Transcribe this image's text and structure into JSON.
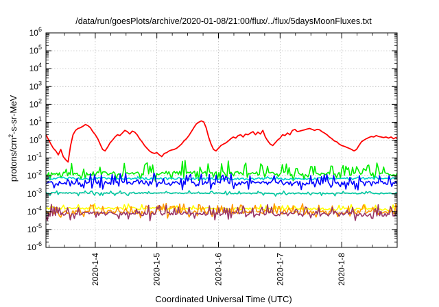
{
  "chart_data": {
    "type": "line",
    "title": "/data/run/goesPlots/archive/2020-01-08/21:00/flux/../flux/5daysMoonFluxes.txt",
    "xlabel": "Coordinated Universal Time (UTC)",
    "ylabel": {
      "base": "protons/cm",
      "sup": "2",
      "rest": "-s-sr-MeV"
    },
    "y_scale": "log",
    "ylim_exponents": [
      -6,
      6
    ],
    "y_tick_base": "10",
    "y_tick_exponents": [
      "-6",
      "-5",
      "-4",
      "-3",
      "-2",
      "-1",
      "0",
      "1",
      "2",
      "3",
      "4",
      "5",
      "6"
    ],
    "x_range_days": [
      3.2,
      8.9
    ],
    "x_ticks": [
      {
        "label": "2020-1-4",
        "day": 4
      },
      {
        "label": "2020-1-5",
        "day": 5
      },
      {
        "label": "2020-1-6",
        "day": 6
      },
      {
        "label": "2020-1-7",
        "day": 7
      },
      {
        "label": "2020-1-8",
        "day": 8
      }
    ],
    "grid": true,
    "legend": "none",
    "series": [
      {
        "color": "#ff0000",
        "day": [
          3.2,
          3.24,
          3.28,
          3.32,
          3.36,
          3.4,
          3.44,
          3.48,
          3.52,
          3.56,
          3.6,
          3.64,
          3.68,
          3.72,
          3.76,
          3.8,
          3.84,
          3.88,
          3.92,
          3.96,
          4.0,
          4.04,
          4.08,
          4.12,
          4.16,
          4.2,
          4.24,
          4.28,
          4.32,
          4.36,
          4.4,
          4.44,
          4.48,
          4.52,
          4.56,
          4.6,
          4.64,
          4.68,
          4.72,
          4.76,
          4.8,
          4.84,
          4.88,
          4.92,
          4.96,
          5.0,
          5.04,
          5.08,
          5.12,
          5.16,
          5.2,
          5.24,
          5.28,
          5.32,
          5.36,
          5.4,
          5.44,
          5.48,
          5.52,
          5.56,
          5.6,
          5.64,
          5.68,
          5.72,
          5.76,
          5.8,
          5.84,
          5.88,
          5.92,
          5.96,
          6.0,
          6.04,
          6.08,
          6.12,
          6.16,
          6.2,
          6.24,
          6.28,
          6.32,
          6.36,
          6.4,
          6.44,
          6.48,
          6.52,
          6.56,
          6.6,
          6.64,
          6.68,
          6.72,
          6.76,
          6.8,
          6.84,
          6.88,
          6.92,
          6.96,
          7.0,
          7.04,
          7.08,
          7.12,
          7.16,
          7.2,
          7.24,
          7.28,
          7.32,
          7.36,
          7.4,
          7.44,
          7.48,
          7.52,
          7.56,
          7.6,
          7.64,
          7.68,
          7.72,
          7.76,
          7.8,
          7.84,
          7.88,
          7.92,
          7.96,
          8.0,
          8.04,
          8.08,
          8.12,
          8.16,
          8.2,
          8.24,
          8.28,
          8.32,
          8.36,
          8.4,
          8.44,
          8.48,
          8.52,
          8.56,
          8.6,
          8.64,
          8.68,
          8.72,
          8.76,
          8.8,
          8.84,
          8.88,
          8.9
        ],
        "y": [
          2.0,
          1.1,
          0.6,
          0.35,
          0.25,
          0.15,
          0.3,
          0.12,
          0.08,
          0.06,
          0.5,
          2.0,
          3.5,
          4.5,
          5.0,
          6.0,
          7.5,
          6.5,
          5.0,
          3.0,
          2.0,
          1.2,
          0.6,
          0.3,
          0.25,
          0.4,
          0.7,
          1.0,
          1.5,
          2.0,
          1.8,
          2.5,
          3.5,
          3.0,
          2.2,
          3.2,
          2.8,
          2.0,
          1.2,
          0.8,
          0.5,
          0.35,
          0.25,
          0.2,
          0.18,
          0.2,
          0.15,
          0.12,
          0.18,
          0.2,
          0.25,
          0.28,
          0.3,
          0.35,
          0.45,
          0.6,
          0.9,
          1.2,
          1.8,
          3.0,
          5.0,
          8.0,
          10.0,
          12.0,
          10.5,
          5.0,
          1.5,
          0.6,
          0.3,
          0.25,
          0.35,
          0.5,
          0.6,
          0.7,
          0.9,
          1.2,
          1.5,
          1.3,
          1.8,
          2.0,
          1.5,
          2.2,
          2.0,
          2.5,
          3.0,
          2.0,
          2.8,
          2.2,
          3.5,
          1.5,
          0.9,
          0.6,
          0.5,
          0.7,
          1.0,
          1.3,
          2.0,
          1.8,
          2.5,
          2.0,
          3.5,
          4.0,
          3.0,
          3.2,
          3.5,
          3.8,
          4.2,
          4.5,
          4.0,
          3.5,
          4.0,
          3.8,
          3.0,
          2.5,
          2.0,
          1.5,
          1.2,
          0.9,
          0.8,
          0.6,
          0.5,
          0.45,
          0.4,
          0.35,
          0.3,
          0.25,
          0.3,
          0.5,
          0.8,
          1.0,
          1.2,
          1.4,
          1.6,
          1.5,
          1.8,
          1.6,
          1.5,
          1.4,
          1.5,
          1.3,
          1.5,
          1.2,
          1.4,
          1.2
        ]
      },
      {
        "color": "#00ee00",
        "style": "spiky",
        "base": [
          0.013,
          0.014,
          0.015,
          0.014,
          0.013,
          0.012
        ],
        "amp": [
          2.5,
          3.5,
          4.0,
          3.0,
          2.5,
          3.0
        ],
        "seed": 11
      },
      {
        "color": "#00cccc",
        "style": "smooth",
        "base": [
          0.0075,
          0.0072,
          0.007,
          0.0068,
          0.007,
          0.0072
        ],
        "amp": [
          1.15,
          1.15,
          1.15,
          1.15,
          1.15,
          1.15
        ],
        "seed": 5
      },
      {
        "color": "#0000ff",
        "style": "spiky",
        "base": [
          0.004,
          0.0045,
          0.0043,
          0.0042,
          0.004,
          0.0041
        ],
        "amp": [
          2.2,
          2.6,
          2.4,
          2.6,
          2.4,
          2.4
        ],
        "seed": 23
      },
      {
        "color": "#00c8a0",
        "style": "flat",
        "base": [
          0.0011,
          0.0011,
          0.0011,
          0.00105,
          0.00105,
          0.00105
        ],
        "amp": [
          1.3,
          1.3,
          1.3,
          1.3,
          1.3,
          1.3
        ],
        "seed": 41
      },
      {
        "color": "#ffff00",
        "style": "smooth",
        "base": [
          0.00016,
          0.000155,
          0.00015,
          0.000145,
          0.00014,
          0.000135
        ],
        "amp": [
          1.6,
          1.6,
          1.6,
          1.6,
          1.6,
          1.6
        ],
        "seed": 7
      },
      {
        "color": "#ff9900",
        "style": "spiky",
        "base": [
          9.5e-05,
          0.0001,
          0.0001,
          9.8e-05,
          9.5e-05,
          9e-05
        ],
        "amp": [
          2.2,
          2.2,
          2.2,
          2.2,
          2.2,
          2.2
        ],
        "seed": 17
      },
      {
        "color": "#993366",
        "style": "spiky",
        "base": [
          7.5e-05,
          7.8e-05,
          8e-05,
          7.6e-05,
          7.4e-05,
          7.2e-05
        ],
        "amp": [
          2.4,
          2.4,
          2.4,
          2.4,
          2.4,
          2.4
        ],
        "seed": 31
      }
    ]
  }
}
